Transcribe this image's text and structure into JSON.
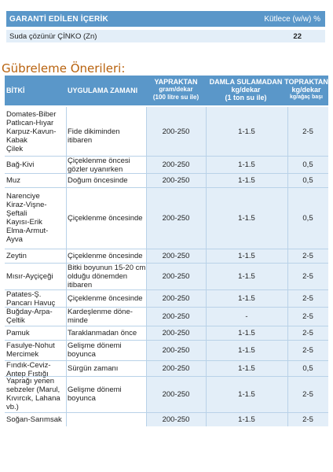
{
  "guarantee": {
    "header_left": "GARANTİ EDİLEN İÇERİK",
    "header_right": "Kütlece (w/w) %",
    "row_label": "Suda çözünür ÇİNKO (Zn)",
    "row_value": "22"
  },
  "section_title": "Gübreleme Önerileri:",
  "table": {
    "headers": {
      "bitki": "BİTKİ",
      "zaman": "UYGULAMA ZAMANI",
      "yap_line1": "YAPRAKTAN",
      "yap_line2": "gram/dekar",
      "yap_line3": "(100 litre su ile)",
      "dam_line1": "DAMLA SULAMADAN",
      "dam_line2": "kg/dekar",
      "dam_line3": "(1 ton su ile)",
      "top_line1": "TOPRAKTAN",
      "top_line2": "kg/dekar",
      "top_line3": "kg/ağaç başı"
    },
    "rows": [
      {
        "bitki": [
          "Domates-Biber",
          "Patlıcan-Hıyar",
          "Karpuz-Kavun-",
          "Kabak",
          "Çilek"
        ],
        "zaman": [
          "Fide dikiminden itibaren"
        ],
        "yap": "200-250",
        "dam": "1-1.5",
        "top": "2-5"
      },
      {
        "bitki": [
          "Bağ-Kivi"
        ],
        "zaman": [
          "Çiçeklenme öncesi",
          "gözler uyanırken"
        ],
        "yap": "200-250",
        "dam": "1-1.5",
        "top": "0,5"
      },
      {
        "bitki": [
          "Muz"
        ],
        "zaman": [
          "Doğum öncesinde"
        ],
        "yap": "200-250",
        "dam": "1-1.5",
        "top": "0,5"
      },
      {
        "bitki": [
          "Narenciye",
          "Kiraz-Vişne-",
          "Şeftali",
          "Kayısı-Erik",
          "Elma-Armut-",
          "Ayva"
        ],
        "zaman": [
          "Çiçeklenme öncesinde"
        ],
        "yap": "200-250",
        "dam": "1-1.5",
        "top": "0,5"
      },
      {
        "bitki": [
          "Zeytin"
        ],
        "zaman": [
          "Çiçeklenme öncesinde"
        ],
        "yap": "200-250",
        "dam": "1-1.5",
        "top": "2-5"
      },
      {
        "bitki": [
          "Mısır-Ayçiçeği"
        ],
        "zaman": [
          "Bitki boyunun 15-20 cm",
          "olduğu dönemden",
          "itibaren"
        ],
        "yap": "200-250",
        "dam": "1-1.5",
        "top": "2-5"
      },
      {
        "bitki": [
          "Patates-Ş.",
          "Pancarı Havuç"
        ],
        "zaman": [
          "Çiçeklenme öncesinde"
        ],
        "yap": "200-250",
        "dam": "1-1.5",
        "top": "2-5"
      },
      {
        "bitki": [
          "Buğday-Arpa-",
          "Çeltik"
        ],
        "zaman": [
          "Kardeşlenme döne-",
          "minde"
        ],
        "yap": "200-250",
        "dam": "-",
        "top": "2-5"
      },
      {
        "bitki": [
          "Pamuk"
        ],
        "zaman": [
          "Taraklanmadan önce"
        ],
        "yap": "200-250",
        "dam": "1-1.5",
        "top": "2-5"
      },
      {
        "bitki": [
          "Fasulye-Nohut",
          "Mercimek"
        ],
        "zaman": [
          "Gelişme dönemi",
          "boyunca"
        ],
        "yap": "200-250",
        "dam": "1-1.5",
        "top": "2-5"
      },
      {
        "bitki": [
          "Fındık-Ceviz-",
          "Antep Fıstığı"
        ],
        "zaman": [
          "Sürgün zamanı"
        ],
        "yap": "200-250",
        "dam": "1-1.5",
        "top": "0,5"
      },
      {
        "bitki": [
          "Yaprağı yenen",
          "sebzeler (Marul,",
          "Kıvırcık, Lahana",
          "vb.)"
        ],
        "zaman": [
          "Gelişme dönemi",
          "boyunca"
        ],
        "yap": "200-250",
        "dam": "1-1.5",
        "top": "2-5"
      },
      {
        "bitki": [
          "Soğan-Sarımsak"
        ],
        "zaman": [],
        "yap": "200-250",
        "dam": "1-1.5",
        "top": "2-5"
      }
    ]
  }
}
